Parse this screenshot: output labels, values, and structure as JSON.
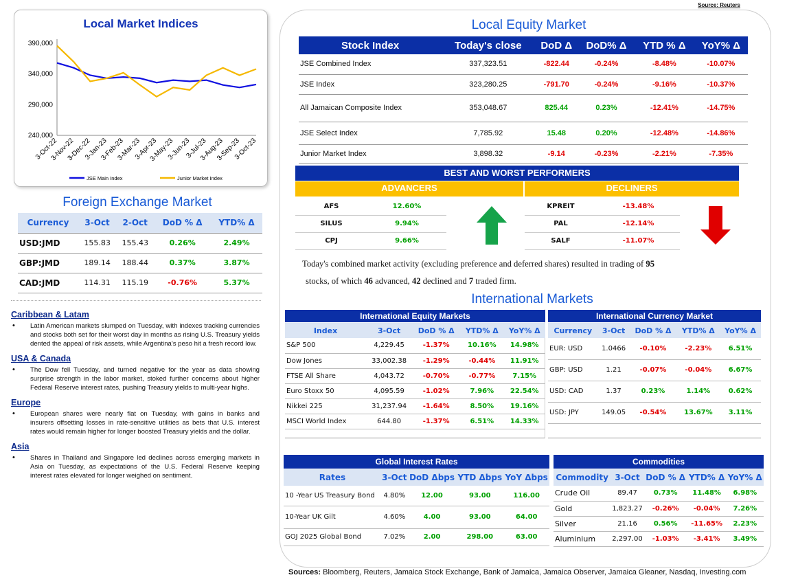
{
  "source_top": "Source: Reuters",
  "indices_chart": {
    "title": "Local Market Indices"
  },
  "chart_data": {
    "type": "line",
    "title": "Local Market Indices",
    "ylim": [
      240000,
      390000
    ],
    "yticks": [
      "390,000",
      "340,000",
      "290,000",
      "240,000"
    ],
    "x": [
      "3-Oct-22",
      "3-Nov-22",
      "3-Dec-22",
      "3-Jan-23",
      "3-Feb-23",
      "3-Mar-23",
      "3-Apr-23",
      "3-May-23",
      "3-Jun-23",
      "3-Jul-23",
      "3-Aug-23",
      "3-Sep-23",
      "3-Oct-23"
    ],
    "series": [
      {
        "name": "JSE Main Index",
        "color": "#1010e0",
        "values": [
          358000,
          350000,
          338000,
          333000,
          335000,
          333000,
          326000,
          330000,
          328000,
          330000,
          322000,
          318000,
          323000
        ]
      },
      {
        "name": "Junior Market Index",
        "color": "#f5b800",
        "values": [
          386000,
          360000,
          328000,
          333000,
          342000,
          322000,
          303000,
          318000,
          314000,
          338000,
          350000,
          338000,
          348000
        ]
      }
    ]
  },
  "fx": {
    "title": "Foreign Exchange Market",
    "headers": [
      "Currency",
      "3-Oct",
      "2-Oct",
      "DoD % Δ",
      "YTD% Δ"
    ],
    "rows": [
      [
        "USD:JMD",
        "155.83",
        "155.43",
        "0.26%",
        "2.49%"
      ],
      [
        "GBP:JMD",
        "189.14",
        "188.44",
        "0.37%",
        "3.87%"
      ],
      [
        "CAD:JMD",
        "114.31",
        "115.19",
        "-0.76%",
        "5.37%"
      ]
    ]
  },
  "news": [
    {
      "h": "Caribbean & Latam",
      "t": "Latin American markets slumped on Tuesday, with indexes tracking currencies and stocks both set for their worst day in months as rising U.S. Treasury yields dented the appeal of risk assets, while Argentina's peso hit a fresh record low."
    },
    {
      "h": "USA & Canada",
      "t": "The Dow fell Tuesday, and turned negative for the year as data showing surprise strength in the labor market, stoked further concerns about higher Federal Reserve interest rates, pushing Treasury yields to multi-year highs."
    },
    {
      "h": "Europe",
      "t": "European shares were nearly flat on Tuesday, with gains in banks and insurers offsetting losses in rate-sensitive utilities as bets that U.S. interest rates would remain higher for longer boosted Treasury yields and the dollar."
    },
    {
      "h": "Asia",
      "t": "Shares in Thailand and Singapore led declines across emerging markets in Asia on Tuesday, as expectations of the U.S. Federal Reserve keeping interest rates elevated for longer weighed on sentiment."
    }
  ],
  "equity": {
    "title": "Local Equity Market",
    "headers": [
      "Stock Index",
      "Today's close",
      "DoD  Δ",
      "DoD% Δ",
      "YTD % Δ",
      "YoY% Δ"
    ],
    "rows": [
      [
        "JSE Combined Index",
        "337,323.51",
        "-822.44",
        "-0.24%",
        "-8.48%",
        "-10.07%"
      ],
      [
        "JSE Index",
        "323,280.25",
        "-791.70",
        "-0.24%",
        "-9.16%",
        "-10.37%"
      ],
      [
        "All Jamaican Composite Index",
        "353,048.67",
        "825.44",
        "0.23%",
        "-12.41%",
        "-14.75%"
      ],
      [
        "JSE Select Index",
        "7,785.92",
        "15.48",
        "0.20%",
        "-12.48%",
        "-14.86%"
      ],
      [
        "Junior Market Index",
        "3,898.32",
        "-9.14",
        "-0.23%",
        "-2.21%",
        "-7.35%"
      ]
    ]
  },
  "performers": {
    "title": "BEST AND WORST PERFORMERS",
    "adv_label": "ADVANCERS",
    "dec_label": "DECLINERS",
    "adv": [
      [
        "AFS",
        "12.60%"
      ],
      [
        "SILUS",
        "9.94%"
      ],
      [
        "CPJ",
        "9.66%"
      ]
    ],
    "dec": [
      [
        "KPREIT",
        "-13.48%"
      ],
      [
        "PAL",
        "-12.14%"
      ],
      [
        "SALF",
        "-11.07%"
      ]
    ]
  },
  "activity": {
    "p1": "Today's combined market activity (excluding preference and deferred shares) resulted in trading of ",
    "n1": "95",
    "p2": "stocks, of which ",
    "n2": "46",
    "p3": " advanced, ",
    "n3": "42",
    "p4": " declined and ",
    "n4": "7",
    "p5": " traded firm."
  },
  "intl_title": "International Markets",
  "ieq": {
    "title": "International Equity Markets",
    "headers": [
      "Index",
      "3-Oct",
      "DoD % Δ",
      "YTD% Δ",
      "YoY% Δ"
    ],
    "rows": [
      [
        "S&P 500",
        "4,229.45",
        "-1.37%",
        "10.16%",
        "14.98%"
      ],
      [
        "Dow Jones",
        "33,002.38",
        "-1.29%",
        "-0.44%",
        "11.91%"
      ],
      [
        "FTSE All Share",
        "4,043.72",
        "-0.70%",
        "-0.77%",
        "7.15%"
      ],
      [
        "Euro Stoxx 50",
        "4,095.59",
        "-1.02%",
        "7.96%",
        "22.54%"
      ],
      [
        "Nikkei 225",
        "31,237.94",
        "-1.64%",
        "8.50%",
        "19.16%"
      ],
      [
        "MSCI World Index",
        "644.80",
        "-1.37%",
        "6.51%",
        "14.33%"
      ]
    ]
  },
  "icur": {
    "title": "International Currency Market",
    "headers": [
      "Currency",
      "3-Oct",
      "DoD % Δ",
      "YTD% Δ",
      "YoY% Δ"
    ],
    "rows": [
      [
        "EUR: USD",
        "1.0466",
        "-0.10%",
        "-2.23%",
        "6.51%"
      ],
      [
        "GBP: USD",
        "1.21",
        "-0.07%",
        "-0.04%",
        "6.67%"
      ],
      [
        "USD: CAD",
        "1.37",
        "0.23%",
        "1.14%",
        "0.62%"
      ],
      [
        "USD: JPY",
        "149.05",
        "-0.54%",
        "13.67%",
        "3.11%"
      ]
    ]
  },
  "rates": {
    "title": "Global Interest Rates",
    "headers": [
      "Rates",
      "3-Oct",
      "DoD Δbps",
      "YTD Δbps",
      "YoY Δbps"
    ],
    "rows": [
      [
        "10 -Year US Treasury Bond",
        "4.80%",
        "12.00",
        "93.00",
        "116.00"
      ],
      [
        "10-Year UK Gilt",
        "4.60%",
        "4.00",
        "93.00",
        "64.00"
      ],
      [
        "GOJ 2025 Global Bond",
        "7.02%",
        "2.00",
        "298.00",
        "63.00"
      ]
    ]
  },
  "comm": {
    "title": "Commodities",
    "headers": [
      "Commodity",
      "3-Oct",
      "DoD % Δ",
      "YTD% Δ",
      "YoY% Δ"
    ],
    "rows": [
      [
        "Crude Oil",
        "89.47",
        "0.73%",
        "11.48%",
        "6.98%"
      ],
      [
        "Gold",
        "1,823.27",
        "-0.26%",
        "-0.04%",
        "7.26%"
      ],
      [
        "Silver",
        "21.16",
        "0.56%",
        "-11.65%",
        "2.23%"
      ],
      [
        "Aluminium",
        "2,297.00",
        "-1.03%",
        "-3.41%",
        "3.49%"
      ]
    ]
  },
  "sources_label": "Sources:",
  "sources_text": " Bloomberg, Reuters, Jamaica Stock Exchange, Bank of Jamaica, Jamaica Observer, Jamaica Gleaner, Nasdaq, Investing.com"
}
